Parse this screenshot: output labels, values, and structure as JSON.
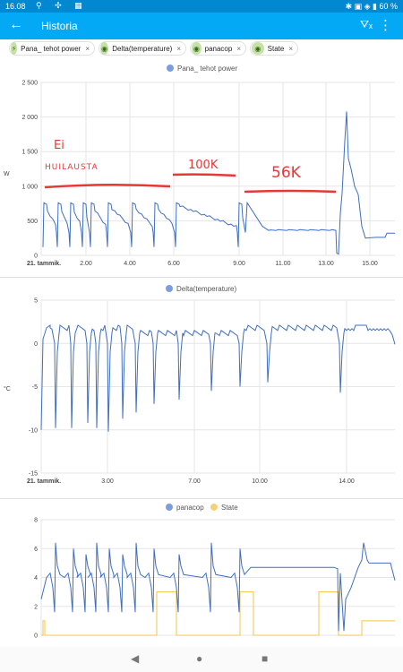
{
  "status": {
    "time": "16.08",
    "battery": "60 %"
  },
  "appbar": {
    "title": "Historia"
  },
  "chips": [
    {
      "label": "Pana_ tehot power",
      "icon": "bolt-icon"
    },
    {
      "label": "Delta(temperature)",
      "icon": "eye-icon"
    },
    {
      "label": "panacop",
      "icon": "eye-icon"
    },
    {
      "label": "State",
      "icon": "eye-icon"
    }
  ],
  "chart_data": [
    {
      "type": "line",
      "title": "Pana_ tehot power",
      "ylabel": "W",
      "ylim": [
        0,
        2500
      ],
      "yticks": [
        "2 500",
        "2 000",
        "1 500",
        "1 000",
        "500",
        "0"
      ],
      "xticks": [
        "21. tammik.",
        "2.00",
        "4.00",
        "6.00",
        "9.00",
        "11.00",
        "13.00",
        "15.00"
      ],
      "series": [
        {
          "name": "Pana_ tehot power",
          "color": "#3f6ec1"
        }
      ],
      "annotations": [
        "Ei huilausta",
        "100K",
        "56K"
      ]
    },
    {
      "type": "line",
      "title": "Delta(temperature)",
      "ylabel": "°C",
      "ylim": [
        -15,
        5
      ],
      "yticks": [
        "5",
        "0",
        "-5",
        "-10",
        "-15"
      ],
      "xticks": [
        "21. tammik.",
        "3.00",
        "7.00",
        "10.00",
        "14.00"
      ],
      "series": [
        {
          "name": "Delta(temperature)",
          "color": "#3f6ec1"
        }
      ]
    },
    {
      "type": "line",
      "ylim": [
        0,
        8
      ],
      "yticks": [
        "8",
        "6",
        "4",
        "2",
        "0"
      ],
      "series": [
        {
          "name": "panacop",
          "color": "#3f6ec1"
        },
        {
          "name": "State",
          "color": "#f3c44d"
        }
      ]
    }
  ]
}
